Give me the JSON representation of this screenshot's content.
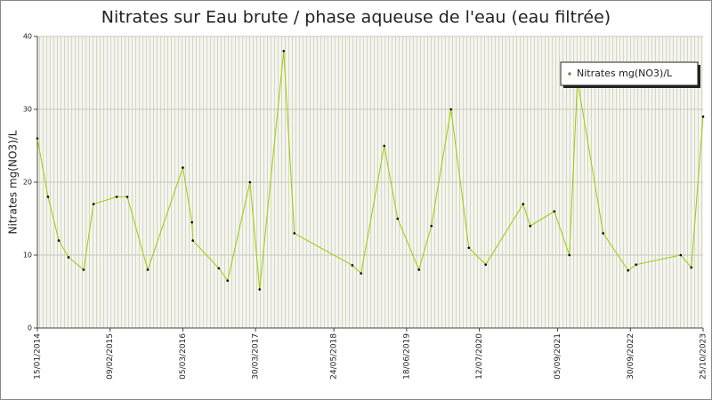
{
  "chart_data": {
    "type": "line",
    "title": "Nitrates sur Eau brute / phase aqueuse de l'eau (eau filtrée)",
    "y_label": "Nitrates mg(NO3)/L",
    "x": [
      "2014-01-15",
      "2014-03-13",
      "2014-05-10",
      "2014-07-01",
      "2014-09-20",
      "2014-11-12",
      "2015-03-16",
      "2015-05-12",
      "2015-08-30",
      "2016-03-05",
      "2016-04-23",
      "2016-04-28",
      "2016-09-14",
      "2016-10-31",
      "2017-02-28",
      "2017-04-21",
      "2017-08-28",
      "2017-10-24",
      "2018-08-31",
      "2018-10-17",
      "2019-02-18",
      "2019-05-01",
      "2019-08-23",
      "2019-10-29",
      "2020-02-11",
      "2020-05-17",
      "2020-08-15",
      "2021-03-04",
      "2021-04-11",
      "2021-08-18",
      "2021-11-07",
      "2021-12-20",
      "2022-05-07",
      "2022-09-18",
      "2022-10-31",
      "2023-06-27",
      "2023-08-23",
      "2023-10-25"
    ],
    "series": [
      {
        "name": "Nitrates mg(NO3)/L",
        "color": "#99cc00",
        "values": [
          26,
          18,
          12,
          9.7,
          8,
          17,
          18,
          18,
          8,
          22,
          14.5,
          12,
          8.2,
          6.5,
          20,
          5.3,
          38,
          13,
          8.6,
          7.5,
          25,
          15,
          8,
          14,
          30,
          11,
          8.7,
          17,
          14,
          16,
          10,
          34,
          13,
          7.9,
          8.7,
          10,
          8.3,
          29
        ]
      }
    ],
    "xlim": [
      "2014-01-15",
      "2023-10-25"
    ],
    "xticks": [
      {
        "value": "2014-01-15",
        "label": "15/01/2014"
      },
      {
        "value": "2015-02-09",
        "label": "09/02/2015"
      },
      {
        "value": "2016-03-05",
        "label": "05/03/2016"
      },
      {
        "value": "2017-03-30",
        "label": "30/03/2017"
      },
      {
        "value": "2018-05-24",
        "label": "24/05/2018"
      },
      {
        "value": "2019-06-18",
        "label": "18/06/2019"
      },
      {
        "value": "2020-07-12",
        "label": "12/07/2020"
      },
      {
        "value": "2021-09-05",
        "label": "05/09/2021"
      },
      {
        "value": "2022-09-30",
        "label": "30/09/2022"
      },
      {
        "value": "2023-10-25",
        "label": "25/10/2023"
      }
    ],
    "ylim": [
      0,
      40
    ],
    "yticks": [
      0,
      10,
      20,
      30,
      40
    ],
    "grid": true,
    "legend": "top-right"
  }
}
